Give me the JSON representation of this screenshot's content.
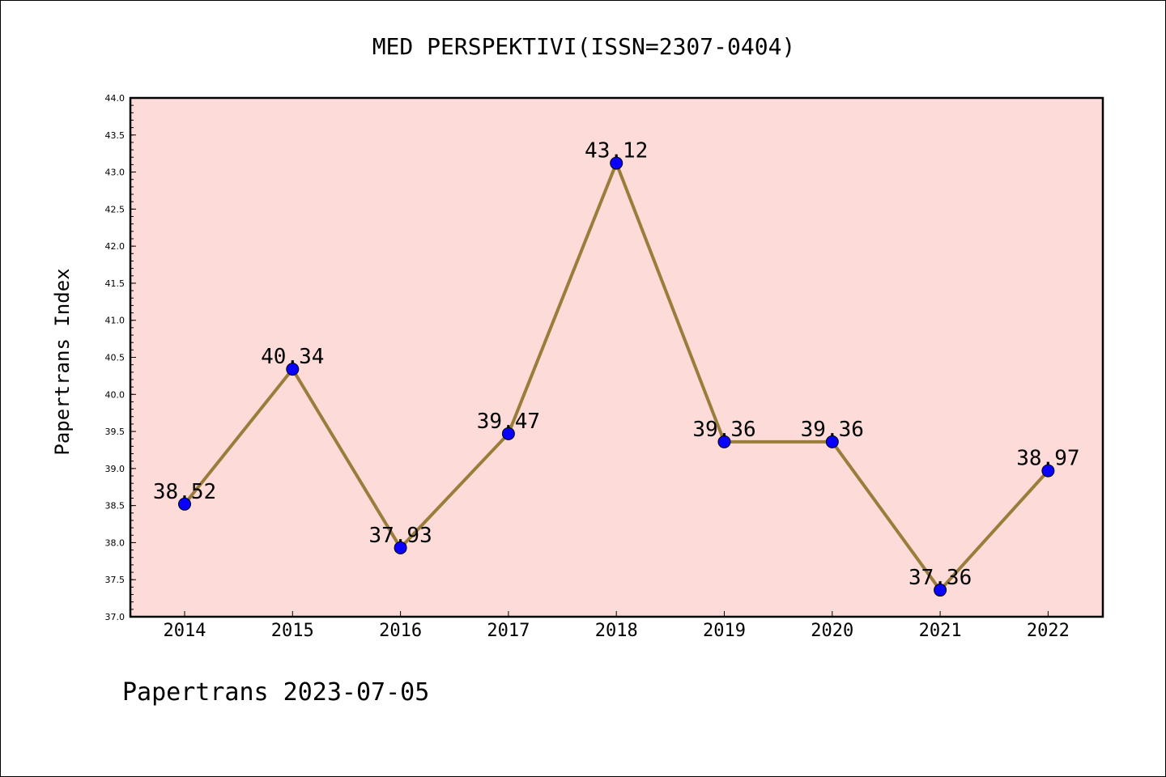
{
  "chart_data": {
    "type": "line",
    "title": "MED PERSPEKTIVI(ISSN=2307-0404)",
    "xlabel": "",
    "ylabel": "Papertrans Index",
    "categories": [
      "2014",
      "2015",
      "2016",
      "2017",
      "2018",
      "2019",
      "2020",
      "2021",
      "2022"
    ],
    "series": [
      {
        "values": [
          38.52,
          40.34,
          37.93,
          39.47,
          43.12,
          39.36,
          39.36,
          37.36,
          38.97
        ],
        "data_labels": [
          "38.52",
          "40.34",
          "37.93",
          "39.47",
          "43.12",
          "39.36",
          "39.36",
          "37.36",
          "38.97"
        ]
      }
    ],
    "ylim": [
      37.0,
      44.0
    ],
    "yticks": [
      "37.0",
      "37.5",
      "38.0",
      "38.5",
      "39.0",
      "39.5",
      "40.0",
      "40.5",
      "41.0",
      "41.5",
      "42.0",
      "42.5",
      "43.0",
      "43.5",
      "44.0"
    ],
    "grid": false,
    "colors": {
      "plot_background": "#fddbd9",
      "line": "#9a7d3a",
      "marker": "#0a00ff"
    }
  },
  "footer": "Papertrans 2023-07-05"
}
